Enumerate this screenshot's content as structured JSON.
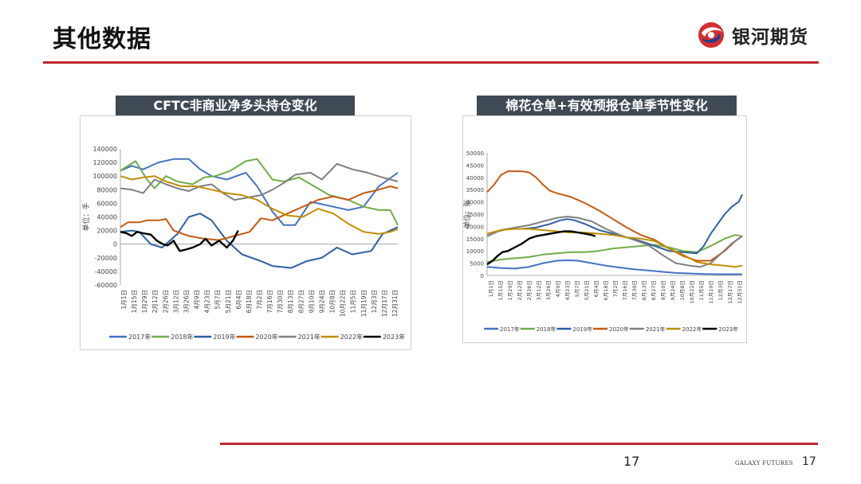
{
  "slide": {
    "title": "其他数据",
    "logo_text": "银河期货",
    "page_number": "17",
    "footer_brand": "GALAXY FUTURES",
    "footer_page_number": "17"
  },
  "chart_data": [
    {
      "type": "line",
      "title": "CFTC非商业净多头持仓变化",
      "ylabel": "单位：手",
      "ylim": [
        -60000,
        140000
      ],
      "yticks": [
        "140000",
        "120000",
        "100000",
        "80000",
        "60000",
        "40000",
        "20000",
        "0",
        "-20000",
        "-40000",
        "-60000"
      ],
      "xticks": [
        "1月1日",
        "1月15日",
        "1月29日",
        "2月12日",
        "2月26日",
        "3月12日",
        "3月26日",
        "4月9日",
        "4月23日",
        "5月7日",
        "5月21日",
        "6月4日",
        "6月18日",
        "7月2日",
        "7月16日",
        "7月30日",
        "8月13日",
        "8月27日",
        "9月10日",
        "9月24日",
        "10月8日",
        "10月22日",
        "11月5日",
        "11月19日",
        "12月3日",
        "12月17日",
        "12月31日"
      ],
      "x_range": [
        0,
        365
      ],
      "series": [
        {
          "name": "2017年",
          "color": "#4472c4",
          "x": [
            0,
            15,
            30,
            50,
            70,
            90,
            105,
            120,
            140,
            165,
            180,
            200,
            215,
            230,
            250,
            260,
            280,
            300,
            320,
            340,
            365
          ],
          "values": [
            108000,
            115000,
            110000,
            120000,
            125000,
            125000,
            110000,
            100000,
            95000,
            105000,
            85000,
            48000,
            28000,
            28000,
            62000,
            60000,
            55000,
            50000,
            55000,
            85000,
            105000
          ]
        },
        {
          "name": "2018年",
          "color": "#70ad47",
          "x": [
            0,
            10,
            20,
            35,
            45,
            60,
            75,
            95,
            110,
            125,
            145,
            165,
            180,
            200,
            215,
            235,
            255,
            275,
            300,
            320,
            340,
            355,
            365
          ],
          "values": [
            108000,
            115000,
            122000,
            95000,
            82000,
            100000,
            92000,
            88000,
            98000,
            100000,
            108000,
            122000,
            125000,
            95000,
            92000,
            98000,
            85000,
            72000,
            65000,
            55000,
            50000,
            50000,
            28000
          ]
        },
        {
          "name": "2019年",
          "color": "#2e5fa2",
          "x": [
            0,
            15,
            25,
            40,
            55,
            75,
            90,
            105,
            120,
            140,
            160,
            185,
            200,
            225,
            245,
            265,
            285,
            305,
            330,
            345,
            365
          ],
          "values": [
            18000,
            20000,
            18000,
            0,
            -5000,
            15000,
            40000,
            45000,
            35000,
            5000,
            -15000,
            -25000,
            -32000,
            -35000,
            -25000,
            -20000,
            -5000,
            -15000,
            -10000,
            15000,
            25000
          ]
        },
        {
          "name": "2020年",
          "color": "#c55a11",
          "x": [
            0,
            10,
            25,
            35,
            50,
            60,
            70,
            90,
            110,
            130,
            150,
            170,
            185,
            200,
            220,
            240,
            260,
            280,
            300,
            320,
            340,
            355,
            365
          ],
          "values": [
            25000,
            32000,
            32000,
            35000,
            35000,
            37000,
            20000,
            12000,
            8000,
            6000,
            12000,
            18000,
            38000,
            35000,
            45000,
            55000,
            65000,
            70000,
            65000,
            75000,
            80000,
            85000,
            82000
          ]
        },
        {
          "name": "2021年",
          "color": "#7f7f7f",
          "x": [
            0,
            15,
            30,
            45,
            60,
            75,
            90,
            105,
            120,
            135,
            150,
            165,
            185,
            200,
            215,
            230,
            250,
            265,
            285,
            305,
            325,
            345,
            365
          ],
          "values": [
            82000,
            80000,
            75000,
            95000,
            88000,
            82000,
            78000,
            85000,
            88000,
            75000,
            65000,
            68000,
            72000,
            80000,
            90000,
            102000,
            105000,
            95000,
            118000,
            110000,
            105000,
            98000,
            92000
          ]
        },
        {
          "name": "2022年",
          "color": "#bf8f00",
          "x": [
            0,
            15,
            30,
            45,
            60,
            80,
            100,
            120,
            140,
            160,
            180,
            200,
            220,
            240,
            260,
            280,
            300,
            320,
            340,
            355,
            365
          ],
          "values": [
            100000,
            95000,
            98000,
            100000,
            92000,
            85000,
            85000,
            80000,
            75000,
            72000,
            65000,
            52000,
            42000,
            40000,
            52000,
            45000,
            30000,
            18000,
            15000,
            18000,
            22000
          ]
        },
        {
          "name": "2023年",
          "color": "#000000",
          "x": [
            0,
            8,
            15,
            22,
            30,
            40,
            48,
            56,
            62,
            70,
            78,
            86,
            95,
            105,
            112,
            120,
            130,
            140,
            148,
            155
          ],
          "values": [
            18000,
            16000,
            12000,
            18000,
            16000,
            14000,
            5000,
            0,
            -2000,
            5000,
            -10000,
            -8000,
            -5000,
            0,
            8000,
            -2000,
            5000,
            -5000,
            5000,
            20000
          ]
        }
      ]
    },
    {
      "type": "line",
      "title": "棉花仓单+有效预报仓单季节性变化",
      "ylabel": "单位：张",
      "ylim": [
        0,
        50000
      ],
      "yticks": [
        "50000",
        "45000",
        "40000",
        "35000",
        "30000",
        "25000",
        "20000",
        "15000",
        "10000",
        "5000",
        "0"
      ],
      "xticks": [
        "1月1日",
        "1月15日",
        "1月29日",
        "2月12日",
        "2月26日",
        "3月12日",
        "3月26日",
        "4月9日",
        "4月23日",
        "5月7日",
        "5月21日",
        "6月4日",
        "6月18日",
        "7月2日",
        "7月16日",
        "7月30日",
        "8月13日",
        "8月27日",
        "9月10日",
        "9月24日",
        "10月8日",
        "10月22日",
        "11月5日",
        "11月19日",
        "12月3日",
        "12月17日",
        "12月31日"
      ],
      "x_range": [
        0,
        365
      ],
      "series": [
        {
          "name": "2017年",
          "color": "#4472c4",
          "x": [
            0,
            20,
            40,
            60,
            80,
            100,
            115,
            130,
            150,
            170,
            190,
            210,
            230,
            250,
            270,
            290,
            310,
            330,
            350,
            365
          ],
          "values": [
            3500,
            3000,
            2800,
            3500,
            5000,
            6000,
            6200,
            6000,
            5000,
            4000,
            3200,
            2500,
            2000,
            1500,
            1000,
            800,
            600,
            500,
            500,
            500
          ]
        },
        {
          "name": "2018年",
          "color": "#70ad47",
          "x": [
            0,
            20,
            40,
            60,
            80,
            100,
            120,
            140,
            160,
            180,
            200,
            220,
            240,
            260,
            280,
            300,
            320,
            340,
            355,
            365
          ],
          "values": [
            5500,
            6500,
            7000,
            7500,
            8500,
            9000,
            9500,
            9500,
            10000,
            11000,
            11500,
            12000,
            12500,
            11500,
            10000,
            9500,
            12000,
            15000,
            16500,
            16000
          ]
        },
        {
          "name": "2019年",
          "color": "#2e5fa2",
          "x": [
            0,
            15,
            30,
            50,
            70,
            90,
            105,
            115,
            125,
            140,
            160,
            180,
            200,
            220,
            240,
            260,
            280,
            300,
            310,
            320,
            330,
            340,
            350,
            360,
            365
          ],
          "values": [
            16000,
            18000,
            19000,
            19000,
            19500,
            21000,
            22500,
            23000,
            22500,
            21000,
            18500,
            17000,
            15500,
            14000,
            12000,
            10000,
            9500,
            9000,
            12000,
            17000,
            21000,
            25000,
            28000,
            30000,
            33000
          ]
        },
        {
          "name": "2020年",
          "color": "#c55a11",
          "x": [
            0,
            10,
            20,
            30,
            40,
            50,
            60,
            70,
            80,
            90,
            100,
            120,
            140,
            160,
            180,
            200,
            220,
            240,
            260,
            280,
            300,
            320,
            340,
            355,
            365
          ],
          "values": [
            34000,
            37000,
            41000,
            42500,
            42500,
            42500,
            42000,
            40000,
            37000,
            34500,
            33500,
            32000,
            29500,
            26500,
            23000,
            19500,
            16500,
            14500,
            11000,
            8000,
            6000,
            6000,
            10000,
            14000,
            16000
          ]
        },
        {
          "name": "2021年",
          "color": "#7f7f7f",
          "x": [
            0,
            20,
            40,
            60,
            80,
            100,
            115,
            130,
            150,
            170,
            190,
            210,
            230,
            250,
            270,
            290,
            305,
            320,
            335,
            350,
            365
          ],
          "values": [
            16000,
            18500,
            19500,
            20500,
            22000,
            23500,
            24000,
            23500,
            22000,
            19000,
            16500,
            14500,
            12500,
            8500,
            5000,
            4000,
            3500,
            5000,
            9000,
            13000,
            16000
          ]
        },
        {
          "name": "2022年",
          "color": "#bf8f00",
          "x": [
            0,
            20,
            40,
            60,
            80,
            100,
            120,
            140,
            160,
            180,
            200,
            220,
            240,
            260,
            280,
            300,
            320,
            340,
            355,
            365
          ],
          "values": [
            17000,
            18500,
            19000,
            19000,
            18500,
            18000,
            17500,
            17500,
            17000,
            16500,
            15500,
            15000,
            14000,
            11000,
            8500,
            5500,
            4500,
            4000,
            3500,
            4000
          ]
        },
        {
          "name": "2023年",
          "color": "#000000",
          "x": [
            0,
            8,
            15,
            22,
            30,
            40,
            50,
            60,
            70,
            80,
            90,
            100,
            110,
            120,
            130,
            140,
            150,
            155
          ],
          "values": [
            4500,
            6000,
            8000,
            9500,
            10000,
            11500,
            13000,
            15000,
            16000,
            16500,
            17000,
            17500,
            18000,
            18000,
            17500,
            17000,
            16500,
            16000
          ]
        }
      ]
    }
  ]
}
